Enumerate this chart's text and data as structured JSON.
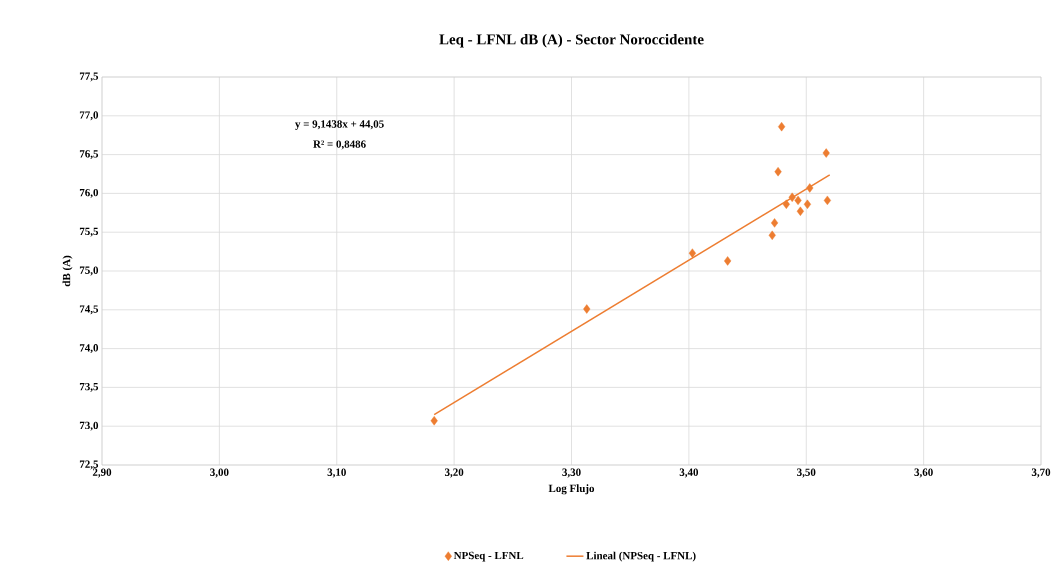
{
  "chart_data": {
    "type": "scatter",
    "title": "Leq - LFNL dB (A) - Sector Noroccidente",
    "xlabel": "Log Flujo",
    "ylabel": "dB (A)",
    "annotations": [
      "y = 9,1438x + 44,05",
      "R² = 0,8486"
    ],
    "xlim": [
      2.9,
      3.7
    ],
    "ylim": [
      72.5,
      77.5
    ],
    "xticks": [
      {
        "value": 2.9,
        "label": "2,90"
      },
      {
        "value": 3.0,
        "label": "3,00"
      },
      {
        "value": 3.1,
        "label": "3,10"
      },
      {
        "value": 3.2,
        "label": "3,20"
      },
      {
        "value": 3.3,
        "label": "3,30"
      },
      {
        "value": 3.4,
        "label": "3,40"
      },
      {
        "value": 3.5,
        "label": "3,50"
      },
      {
        "value": 3.6,
        "label": "3,60"
      },
      {
        "value": 3.7,
        "label": "3,70"
      }
    ],
    "yticks": [
      {
        "value": 72.5,
        "label": "72,5"
      },
      {
        "value": 73.0,
        "label": "73,0"
      },
      {
        "value": 73.5,
        "label": "73,5"
      },
      {
        "value": 74.0,
        "label": "74,0"
      },
      {
        "value": 74.5,
        "label": "74,5"
      },
      {
        "value": 75.0,
        "label": "75,0"
      },
      {
        "value": 75.5,
        "label": "75,5"
      },
      {
        "value": 76.0,
        "label": "76,0"
      },
      {
        "value": 76.5,
        "label": "76,5"
      },
      {
        "value": 77.0,
        "label": "77,0"
      },
      {
        "value": 77.5,
        "label": "77,5"
      }
    ],
    "grid": true,
    "legend": "bottom",
    "series": [
      {
        "name": "NPSeq - LFNL",
        "color": "#ed7d31",
        "marker": "diamond",
        "x": [
          3.183,
          3.313,
          3.403,
          3.433,
          3.479,
          3.517,
          3.476,
          3.503,
          3.518,
          3.488,
          3.493,
          3.483,
          3.501,
          3.495,
          3.473,
          3.471
        ],
        "values": [
          73.07,
          74.51,
          75.23,
          75.13,
          76.86,
          76.52,
          76.28,
          76.07,
          75.91,
          75.95,
          75.91,
          75.86,
          75.86,
          75.77,
          75.62,
          75.46
        ]
      },
      {
        "name": "Lineal (NPSeq - LFNL)",
        "color": "#ed7d31",
        "type": "line",
        "x": [
          3.183,
          3.52
        ],
        "values": [
          73.15,
          76.24
        ]
      }
    ]
  }
}
